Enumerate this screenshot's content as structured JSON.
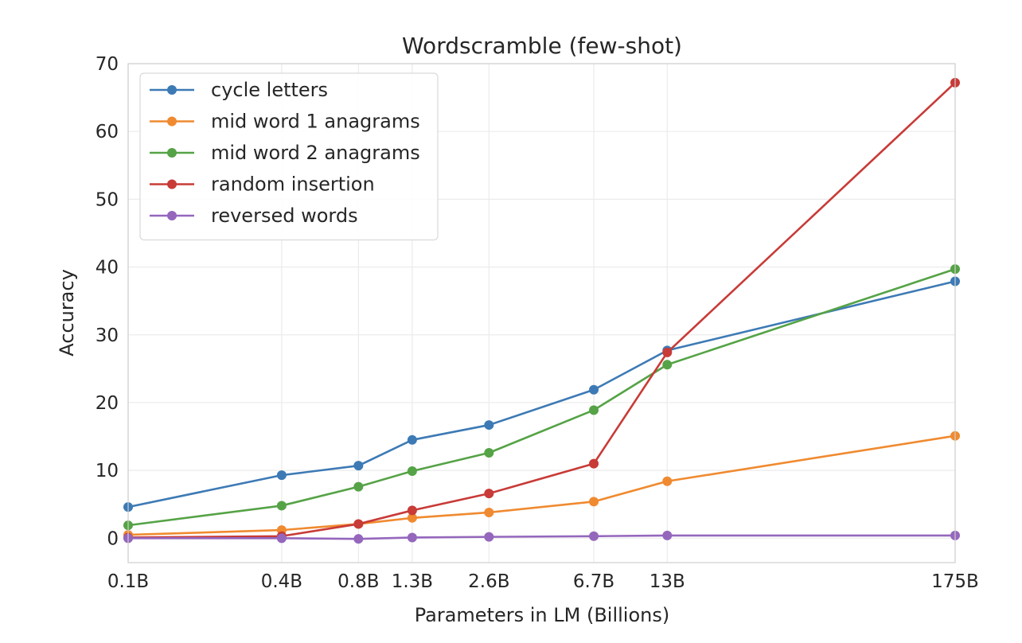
{
  "chart_data": {
    "type": "line",
    "title": "Wordscramble (few-shot)",
    "xlabel": "Parameters in LM (Billions)",
    "ylabel": "Accuracy",
    "x_scale": "log",
    "x": [
      0.1,
      0.4,
      0.8,
      1.3,
      2.6,
      6.7,
      13,
      175
    ],
    "x_tick_labels": [
      "0.1B",
      "0.4B",
      "0.8B",
      "1.3B",
      "2.6B",
      "6.7B",
      "13B",
      "175B"
    ],
    "ylim": [
      -3.6,
      70
    ],
    "yticks": [
      0,
      10,
      20,
      30,
      40,
      50,
      60,
      70
    ],
    "grid": true,
    "legend_position": "top-left",
    "series": [
      {
        "name": "cycle letters",
        "color": "#3d7ab5",
        "values": [
          4.6,
          9.3,
          10.7,
          14.5,
          16.7,
          21.9,
          27.7,
          37.9
        ]
      },
      {
        "name": "mid word 1 anagrams",
        "color": "#f08a30",
        "values": [
          0.5,
          1.2,
          2.1,
          3.0,
          3.8,
          5.4,
          8.4,
          15.1
        ]
      },
      {
        "name": "mid word 2 anagrams",
        "color": "#55a346",
        "values": [
          1.9,
          4.8,
          7.6,
          9.9,
          12.6,
          18.9,
          25.6,
          39.7
        ]
      },
      {
        "name": "random insertion",
        "color": "#c83b37",
        "values": [
          0.1,
          0.3,
          2.1,
          4.1,
          6.6,
          11.0,
          27.4,
          67.2
        ]
      },
      {
        "name": "reversed words",
        "color": "#9467bd",
        "values": [
          0.0,
          0.0,
          -0.1,
          0.1,
          0.2,
          0.3,
          0.4,
          0.4
        ]
      }
    ]
  }
}
